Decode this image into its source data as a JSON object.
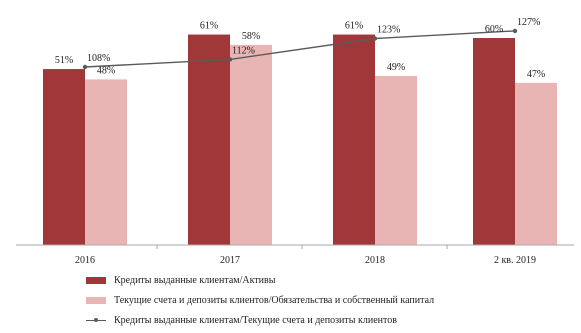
{
  "chart_data": {
    "type": "bar",
    "categories": [
      "2016",
      "2017",
      "2018",
      "2 кв. 2019"
    ],
    "series": [
      {
        "name": "Кредиты выданные клиентам/Активы",
        "kind": "bar",
        "color": "#a0383a",
        "values": [
          51,
          61,
          61,
          60
        ],
        "labels": [
          "51%",
          "61%",
          "61%",
          "60%"
        ]
      },
      {
        "name": "Текущие счета и депозиты клиентов/Обязательства и собственный капитал",
        "kind": "bar",
        "color": "#e9b5b4",
        "values": [
          48,
          58,
          49,
          47
        ],
        "labels": [
          "48%",
          "58%",
          "49%",
          "47%"
        ]
      },
      {
        "name": "Кредиты выданные клиентам/Текущие счета и депозиты клиентов",
        "kind": "line",
        "color": "#5a5a5a",
        "values": [
          108,
          112,
          123,
          127
        ],
        "labels": [
          "108%",
          "112%",
          "123%",
          "127%"
        ]
      }
    ],
    "legend_position": "bottom",
    "grid": false
  }
}
